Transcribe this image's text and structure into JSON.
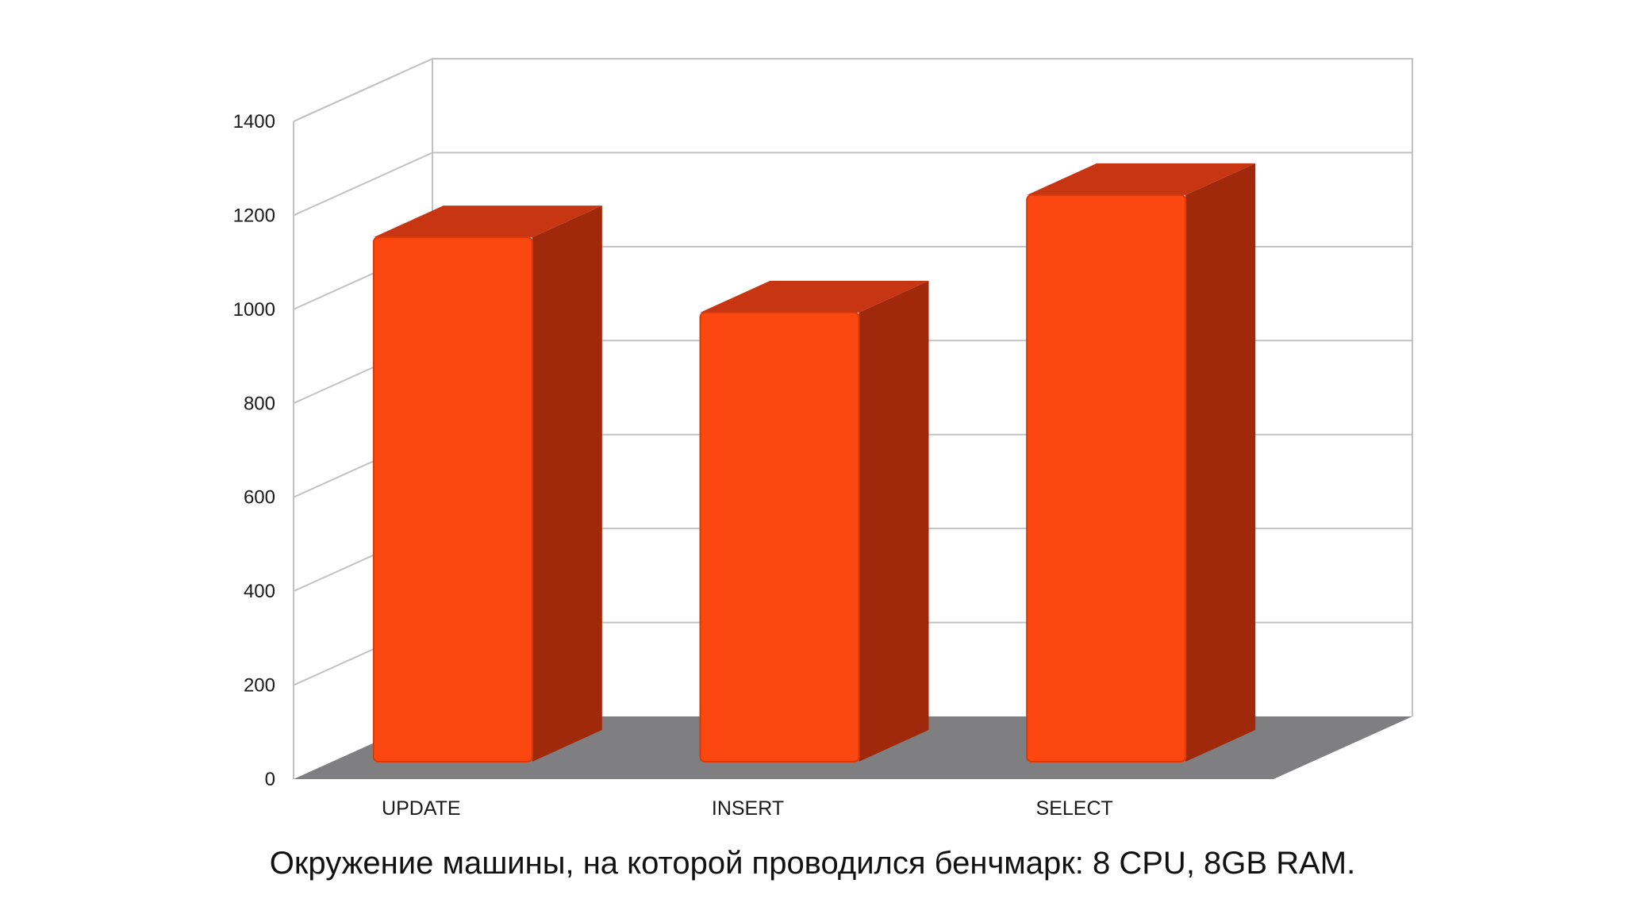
{
  "chart_data": {
    "type": "bar",
    "style": "3d",
    "categories": [
      "UPDATE",
      "INSERT",
      "SELECT"
    ],
    "values": [
      1160,
      1000,
      1250
    ],
    "title": "",
    "xlabel": "",
    "ylabel": "",
    "ylim": [
      0,
      1400
    ],
    "yticks": [
      0,
      200,
      400,
      600,
      800,
      1000,
      1200,
      1400
    ],
    "grid": true,
    "legend": "none",
    "colors": {
      "bar_front": "#fc4710",
      "bar_side": "#a0290b",
      "bar_top": "#c73512",
      "floor": "#7f7e81",
      "grid": "#c2c2c2"
    }
  },
  "caption": "Окружение машины, на которой проводился бенчмарк: 8 CPU, 8GB RAM."
}
